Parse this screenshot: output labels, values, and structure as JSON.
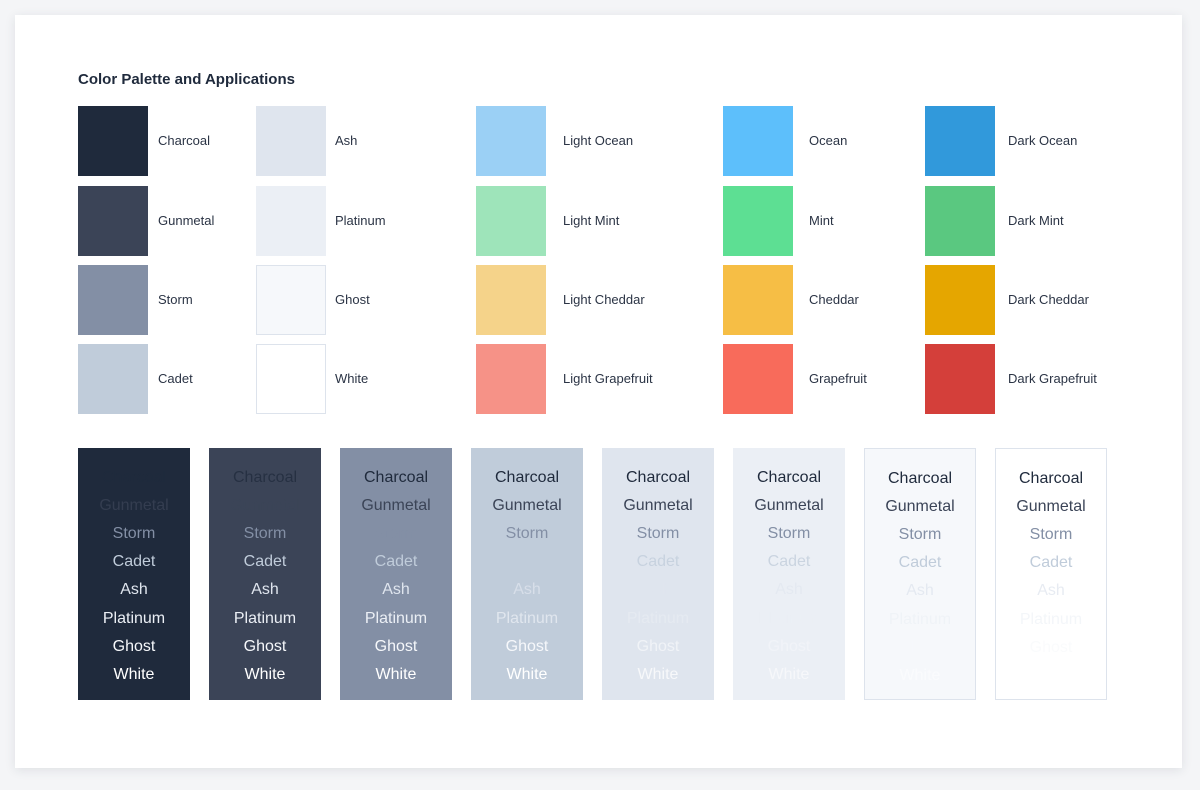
{
  "title": "Color Palette and Applications",
  "palette": [
    {
      "name": "Charcoal",
      "hex": "#1f2a3c"
    },
    {
      "name": "Gunmetal",
      "hex": "#3b4457"
    },
    {
      "name": "Storm",
      "hex": "#838fa5"
    },
    {
      "name": "Cadet",
      "hex": "#c0ccda"
    },
    {
      "name": "Ash",
      "hex": "#dfe5ee"
    },
    {
      "name": "Platinum",
      "hex": "#ebeff5"
    },
    {
      "name": "Ghost",
      "hex": "#f6f8fb"
    },
    {
      "name": "White",
      "hex": "#ffffff"
    },
    {
      "name": "Light Ocean",
      "hex": "#9bd0f5"
    },
    {
      "name": "Light Mint",
      "hex": "#9ee4ba"
    },
    {
      "name": "Light Cheddar",
      "hex": "#f5d38a"
    },
    {
      "name": "Light Grapefruit",
      "hex": "#f69287"
    },
    {
      "name": "Ocean",
      "hex": "#5dbffb"
    },
    {
      "name": "Mint",
      "hex": "#5ddf93"
    },
    {
      "name": "Cheddar",
      "hex": "#f6be45"
    },
    {
      "name": "Grapefruit",
      "hex": "#f86b5b"
    },
    {
      "name": "Dark Ocean",
      "hex": "#3199db"
    },
    {
      "name": "Dark Mint",
      "hex": "#5ac880"
    },
    {
      "name": "Dark Cheddar",
      "hex": "#e5a600"
    },
    {
      "name": "Dark Grapefruit",
      "hex": "#d43f3a"
    }
  ],
  "applications": {
    "labels": [
      "Charcoal",
      "Gunmetal",
      "Storm",
      "Cadet",
      "Ash",
      "Platinum",
      "Ghost",
      "White"
    ],
    "backgrounds": [
      "#1f2a3c",
      "#3b4457",
      "#838fa5",
      "#c0ccda",
      "#dfe5ee",
      "#ebeff5",
      "#f6f8fb",
      "#ffffff"
    ]
  }
}
